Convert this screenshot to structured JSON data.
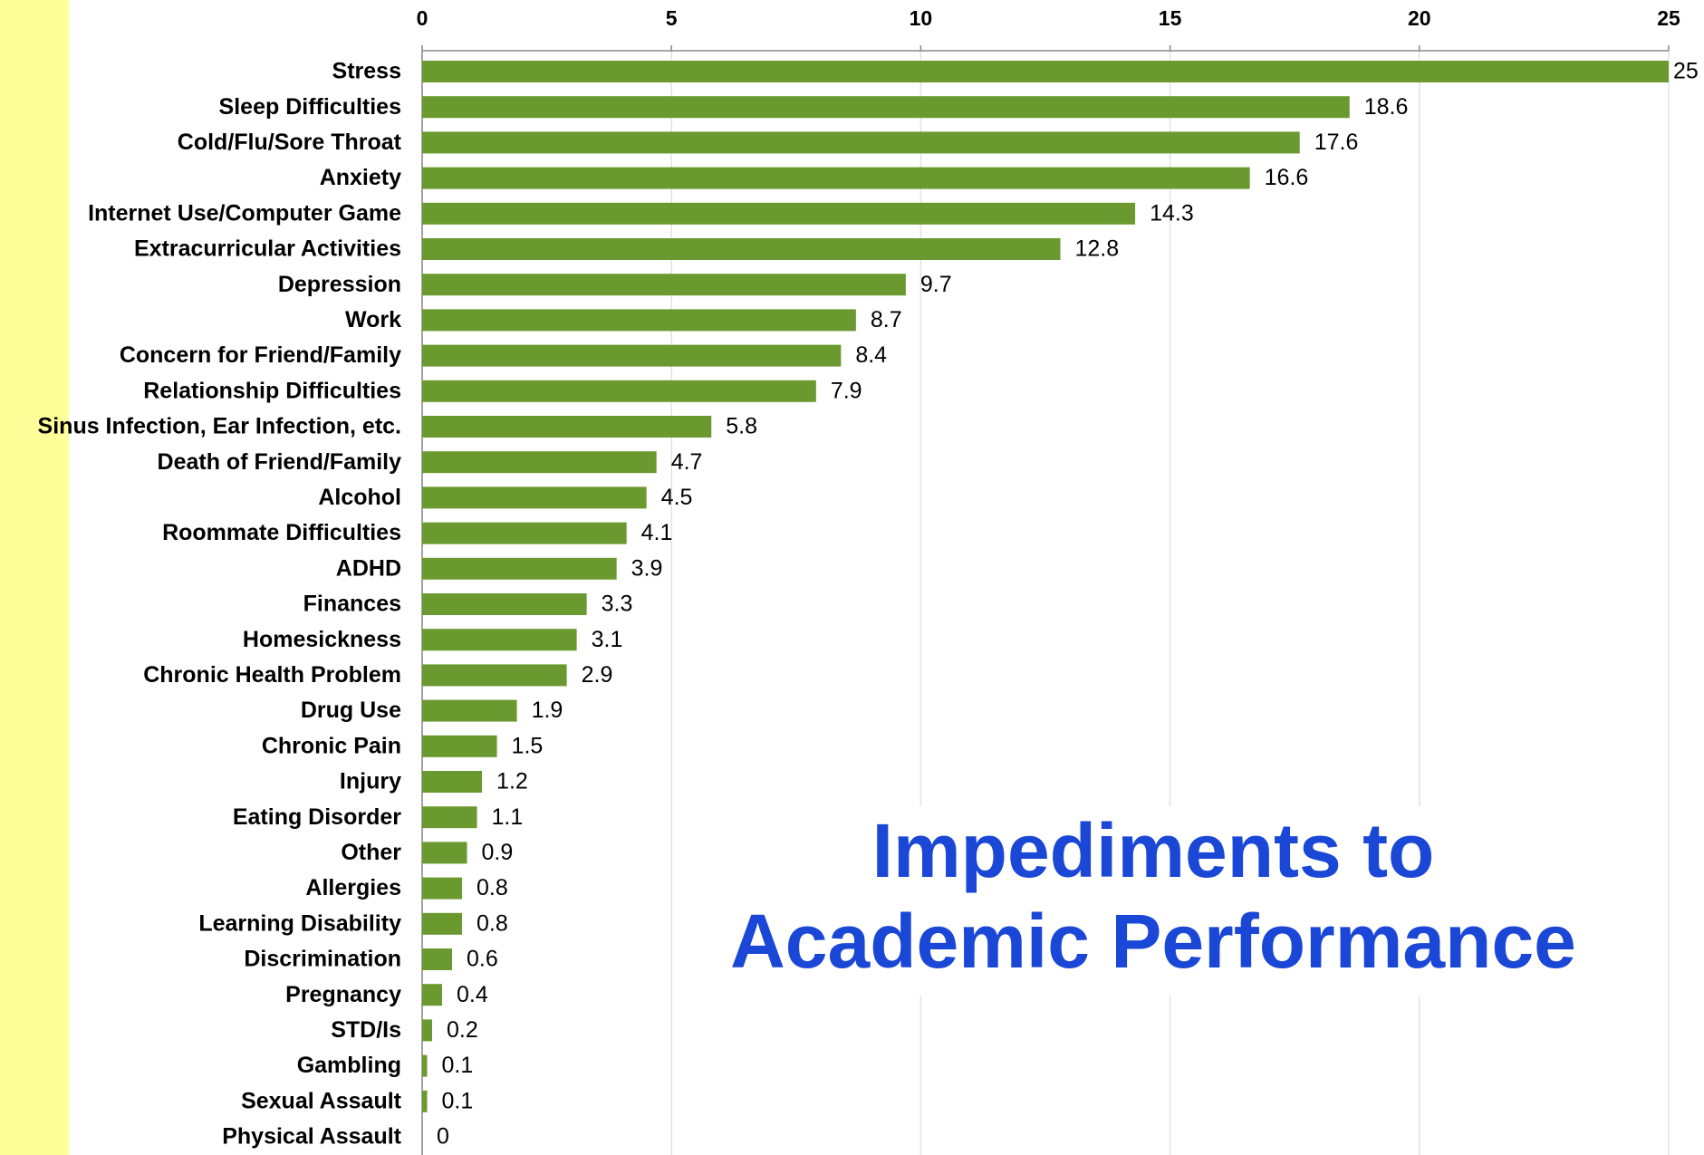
{
  "chart_data": {
    "type": "bar",
    "orientation": "horizontal",
    "title": [
      "Impediments to",
      "Academic Performance"
    ],
    "categories": [
      "Stress",
      "Sleep Difficulties",
      "Cold/Flu/Sore Throat",
      "Anxiety",
      "Internet Use/Computer Game",
      "Extracurricular Activities",
      "Depression",
      "Work",
      "Concern for Friend/Family",
      "Relationship Difficulties",
      "Sinus Infection, Ear Infection, etc.",
      "Death of Friend/Family",
      "Alcohol",
      "Roommate Difficulties",
      "ADHD",
      "Finances",
      "Homesickness",
      "Chronic Health Problem",
      "Drug Use",
      "Chronic Pain",
      "Injury",
      "Eating Disorder",
      "Other",
      "Allergies",
      "Learning Disability",
      "Discrimination",
      "Pregnancy",
      "STD/Is",
      "Gambling",
      "Sexual Assault",
      "Physical Assault"
    ],
    "values": [
      25,
      18.6,
      17.6,
      16.6,
      14.3,
      12.8,
      9.7,
      8.7,
      8.4,
      7.9,
      5.8,
      4.7,
      4.5,
      4.1,
      3.9,
      3.3,
      3.1,
      2.9,
      1.9,
      1.5,
      1.2,
      1.1,
      0.9,
      0.8,
      0.8,
      0.6,
      0.4,
      0.2,
      0.1,
      0.1,
      0
    ],
    "color": "#6a9a2f",
    "xlim": [
      0,
      25
    ],
    "xticks": [
      0,
      5,
      10,
      15,
      20,
      25
    ],
    "grid": true
  }
}
